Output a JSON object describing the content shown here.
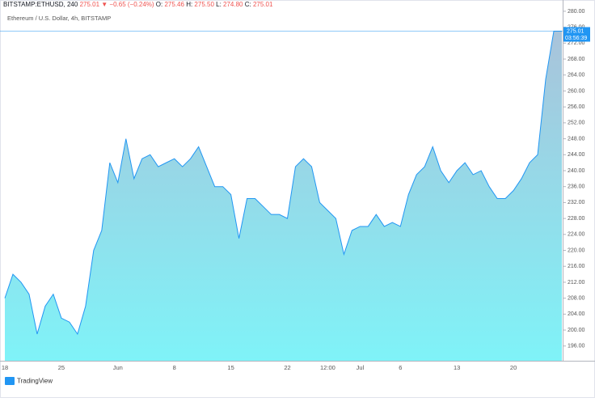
{
  "chart_data": {
    "type": "area",
    "symbol": "BITSTAMP:ETHUSD, 240",
    "last": "275.01",
    "change": "▼ −0.65 (−0.24%)",
    "ohlc": [
      {
        "key": "O:",
        "val": "275.46"
      },
      {
        "key": "H:",
        "val": "275.50"
      },
      {
        "key": "L:",
        "val": "274.80"
      },
      {
        "key": "C:",
        "val": "275.01"
      }
    ],
    "legend_title": "Ethereum / U.S. Dollar, 4h, BITSTAMP",
    "price_line": {
      "value": 275.01,
      "label": "275.01"
    },
    "countdown": "03:56:39",
    "brand": "TradingView",
    "categories": [
      "18",
      null,
      null,
      null,
      null,
      null,
      null,
      "25",
      null,
      null,
      null,
      null,
      null,
      null,
      "Jun",
      null,
      null,
      null,
      null,
      null,
      null,
      "8",
      null,
      null,
      null,
      null,
      null,
      null,
      "15",
      null,
      null,
      null,
      null,
      null,
      null,
      "22",
      null,
      null,
      null,
      null,
      "12:00",
      null,
      null,
      null,
      "Jul",
      null,
      null,
      null,
      null,
      "6",
      null,
      null,
      null,
      null,
      null,
      null,
      "13",
      null,
      null,
      null,
      null,
      null,
      null,
      "20",
      null,
      null,
      null,
      null,
      null,
      null
    ],
    "series": [
      {
        "name": "ETHUSD",
        "color": "#2196f3",
        "values": [
          208,
          214,
          212,
          209,
          199,
          206,
          209,
          203,
          202,
          199,
          206,
          220,
          225,
          242,
          237,
          248,
          238,
          243,
          244,
          241,
          242,
          243,
          241,
          243,
          246,
          241,
          236,
          236,
          234,
          223,
          233,
          233,
          231,
          229,
          229,
          228,
          241,
          243,
          241,
          232,
          230,
          228,
          219,
          225,
          226,
          226,
          229,
          226,
          227,
          226,
          234,
          239,
          241,
          246,
          240,
          237,
          240,
          242,
          239,
          240,
          236,
          233,
          233,
          235,
          238,
          242,
          244,
          263,
          275,
          275
        ]
      }
    ],
    "ylim": [
      192.3,
      281.2
    ],
    "yticks": [
      {
        "value": 196,
        "label": "196.00"
      },
      {
        "value": 200,
        "label": "200.00"
      },
      {
        "value": 204,
        "label": "204.00"
      },
      {
        "value": 208,
        "label": "208.00"
      },
      {
        "value": 212,
        "label": "212.00"
      },
      {
        "value": 216,
        "label": "216.00"
      },
      {
        "value": 220,
        "label": "220.00"
      },
      {
        "value": 224,
        "label": "224.00"
      },
      {
        "value": 228,
        "label": "228.00"
      },
      {
        "value": 232,
        "label": "232.00"
      },
      {
        "value": 236,
        "label": "236.00"
      },
      {
        "value": 240,
        "label": "240.00"
      },
      {
        "value": 244,
        "label": "244.00"
      },
      {
        "value": 248,
        "label": "248.00"
      },
      {
        "value": 252,
        "label": "252.00"
      },
      {
        "value": 256,
        "label": "256.00"
      },
      {
        "value": 260,
        "label": "260.00"
      },
      {
        "value": 264,
        "label": "264.00"
      },
      {
        "value": 268,
        "label": "268.00"
      },
      {
        "value": 272,
        "label": "272.00"
      },
      {
        "value": 276,
        "label": "276.00"
      },
      {
        "value": 280,
        "label": "280.00"
      }
    ]
  }
}
